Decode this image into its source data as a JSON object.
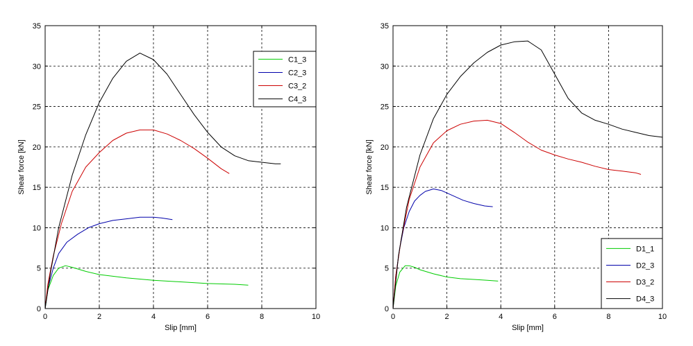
{
  "chart_data": [
    {
      "type": "line",
      "xlabel": "Slip [mm]",
      "ylabel": "Shear force [kN]",
      "xlim": [
        0,
        10
      ],
      "ylim": [
        0,
        35
      ],
      "x_ticks": [
        "0",
        "2",
        "4",
        "6",
        "8",
        "10"
      ],
      "y_ticks": [
        "0",
        "5",
        "10",
        "15",
        "20",
        "25",
        "30",
        "35"
      ],
      "grid": true,
      "legend_position": "top-right",
      "series": [
        {
          "name": "C1_3",
          "color": "#00cc00",
          "x": [
            0,
            0.1,
            0.3,
            0.5,
            0.75,
            1.0,
            1.5,
            2.0,
            3.0,
            4.0,
            5.0,
            6.0,
            7.0,
            7.5
          ],
          "y": [
            0,
            2.3,
            4.1,
            5.0,
            5.3,
            5.1,
            4.6,
            4.2,
            3.8,
            3.5,
            3.3,
            3.1,
            3.0,
            2.9
          ]
        },
        {
          "name": "C2_3",
          "color": "#0000aa",
          "x": [
            0,
            0.1,
            0.3,
            0.5,
            0.8,
            1.2,
            1.6,
            2.0,
            2.5,
            3.0,
            3.5,
            4.0,
            4.3,
            4.7
          ],
          "y": [
            0,
            2.5,
            5.0,
            6.8,
            8.2,
            9.2,
            10.0,
            10.5,
            10.9,
            11.1,
            11.3,
            11.3,
            11.2,
            11.0
          ]
        },
        {
          "name": "C3_2",
          "color": "#cc0000",
          "x": [
            0,
            0.1,
            0.3,
            0.6,
            1.0,
            1.5,
            2.0,
            2.5,
            3.0,
            3.5,
            4.0,
            4.5,
            5.0,
            5.5,
            6.0,
            6.5,
            6.8
          ],
          "y": [
            0,
            3.0,
            6.5,
            10.5,
            14.5,
            17.5,
            19.3,
            20.8,
            21.7,
            22.1,
            22.1,
            21.6,
            20.8,
            19.8,
            18.6,
            17.3,
            16.7
          ]
        },
        {
          "name": "C4_3",
          "color": "#000000",
          "x": [
            0,
            0.2,
            0.5,
            1.0,
            1.5,
            2.0,
            2.5,
            3.0,
            3.5,
            4.0,
            4.5,
            5.0,
            5.5,
            6.0,
            6.5,
            7.0,
            7.5,
            8.0,
            8.5,
            8.7
          ],
          "y": [
            0,
            4.5,
            10.0,
            16.5,
            21.5,
            25.5,
            28.5,
            30.6,
            31.6,
            30.8,
            29.0,
            26.5,
            24.0,
            21.8,
            20.0,
            18.9,
            18.3,
            18.1,
            17.9,
            17.9
          ]
        }
      ]
    },
    {
      "type": "line",
      "xlabel": "Slip [mm]",
      "ylabel": "Shear force [kN]",
      "xlim": [
        0,
        10
      ],
      "ylim": [
        0,
        35
      ],
      "x_ticks": [
        "0",
        "2",
        "4",
        "6",
        "8",
        "10"
      ],
      "y_ticks": [
        "0",
        "5",
        "10",
        "15",
        "20",
        "25",
        "30",
        "35"
      ],
      "grid": true,
      "legend_position": "bottom-right",
      "series": [
        {
          "name": "D1_1",
          "color": "#00cc00",
          "x": [
            0,
            0.1,
            0.25,
            0.45,
            0.6,
            0.8,
            1.0,
            1.5,
            2.0,
            2.5,
            3.0,
            3.5,
            3.9
          ],
          "y": [
            0,
            2.8,
            4.5,
            5.3,
            5.3,
            5.1,
            4.8,
            4.3,
            3.9,
            3.7,
            3.6,
            3.5,
            3.4
          ]
        },
        {
          "name": "D2_3",
          "color": "#0000aa",
          "x": [
            0,
            0.1,
            0.25,
            0.4,
            0.6,
            0.8,
            1.0,
            1.2,
            1.5,
            1.8,
            2.2,
            2.6,
            3.0,
            3.4,
            3.7
          ],
          "y": [
            0,
            4.0,
            7.5,
            10.0,
            12.0,
            13.3,
            14.0,
            14.5,
            14.8,
            14.6,
            14.0,
            13.4,
            13.0,
            12.7,
            12.6
          ]
        },
        {
          "name": "D3_2",
          "color": "#cc0000",
          "x": [
            0,
            0.1,
            0.3,
            0.6,
            1.0,
            1.5,
            2.0,
            2.5,
            3.0,
            3.5,
            4.0,
            4.5,
            5.0,
            5.5,
            6.0,
            6.5,
            7.0,
            7.5,
            8.0,
            8.5,
            9.0,
            9.2
          ],
          "y": [
            0,
            4.0,
            8.5,
            13.5,
            17.5,
            20.5,
            22.0,
            22.8,
            23.2,
            23.3,
            22.9,
            21.8,
            20.6,
            19.6,
            19.0,
            18.5,
            18.1,
            17.6,
            17.2,
            17.0,
            16.8,
            16.6
          ]
        },
        {
          "name": "D4_3",
          "color": "#000000",
          "x": [
            0,
            0.2,
            0.5,
            1.0,
            1.5,
            2.0,
            2.5,
            3.0,
            3.5,
            4.0,
            4.5,
            5.0,
            5.5,
            6.0,
            6.5,
            7.0,
            7.5,
            8.0,
            8.5,
            9.0,
            9.5,
            10.0
          ],
          "y": [
            0,
            6.5,
            12.5,
            19.0,
            23.5,
            26.5,
            28.7,
            30.4,
            31.7,
            32.6,
            33.0,
            33.1,
            32.0,
            29.0,
            26.0,
            24.2,
            23.3,
            22.8,
            22.2,
            21.8,
            21.4,
            21.2
          ]
        }
      ]
    }
  ]
}
